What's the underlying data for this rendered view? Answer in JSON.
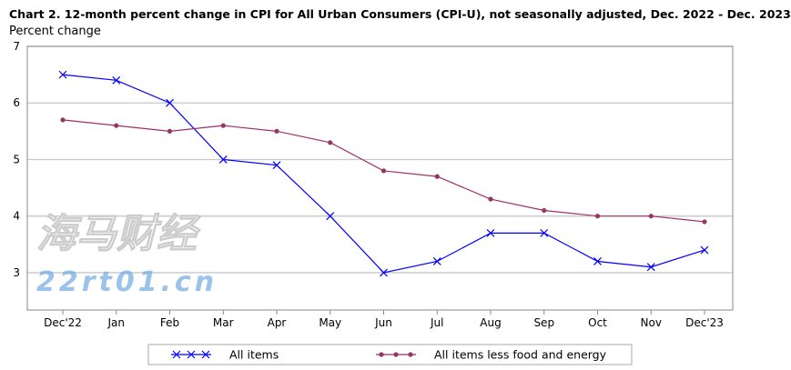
{
  "chart_data": {
    "type": "line",
    "title": "Chart 2. 12-month percent change in CPI for All Urban Consumers (CPI-U), not seasonally adjusted, Dec. 2022 - Dec. 2023",
    "ylabel": "Percent change",
    "xlabel": "",
    "categories": [
      "Dec'22",
      "Jan",
      "Feb",
      "Mar",
      "Apr",
      "May",
      "Jun",
      "Jul",
      "Aug",
      "Sep",
      "Oct",
      "Nov",
      "Dec'23"
    ],
    "ylim": [
      2.34,
      7
    ],
    "yticks": [
      3,
      4,
      5,
      6,
      7
    ],
    "grid": "horizontal",
    "legend_placement": "bottom",
    "series": [
      {
        "name": "All items",
        "color": "#0000ff",
        "marker": "x",
        "values": [
          6.5,
          6.4,
          6.0,
          5.0,
          4.9,
          4.0,
          3.0,
          3.2,
          3.7,
          3.7,
          3.2,
          3.1,
          3.4
        ]
      },
      {
        "name": "All items less food and energy",
        "color": "#993366",
        "marker": "circle",
        "values": [
          5.7,
          5.6,
          5.5,
          5.6,
          5.5,
          5.3,
          4.8,
          4.7,
          4.3,
          4.1,
          4.0,
          4.0,
          3.9
        ]
      }
    ]
  },
  "watermark": {
    "line1": "海马财经",
    "line2": "22rt01.cn"
  }
}
